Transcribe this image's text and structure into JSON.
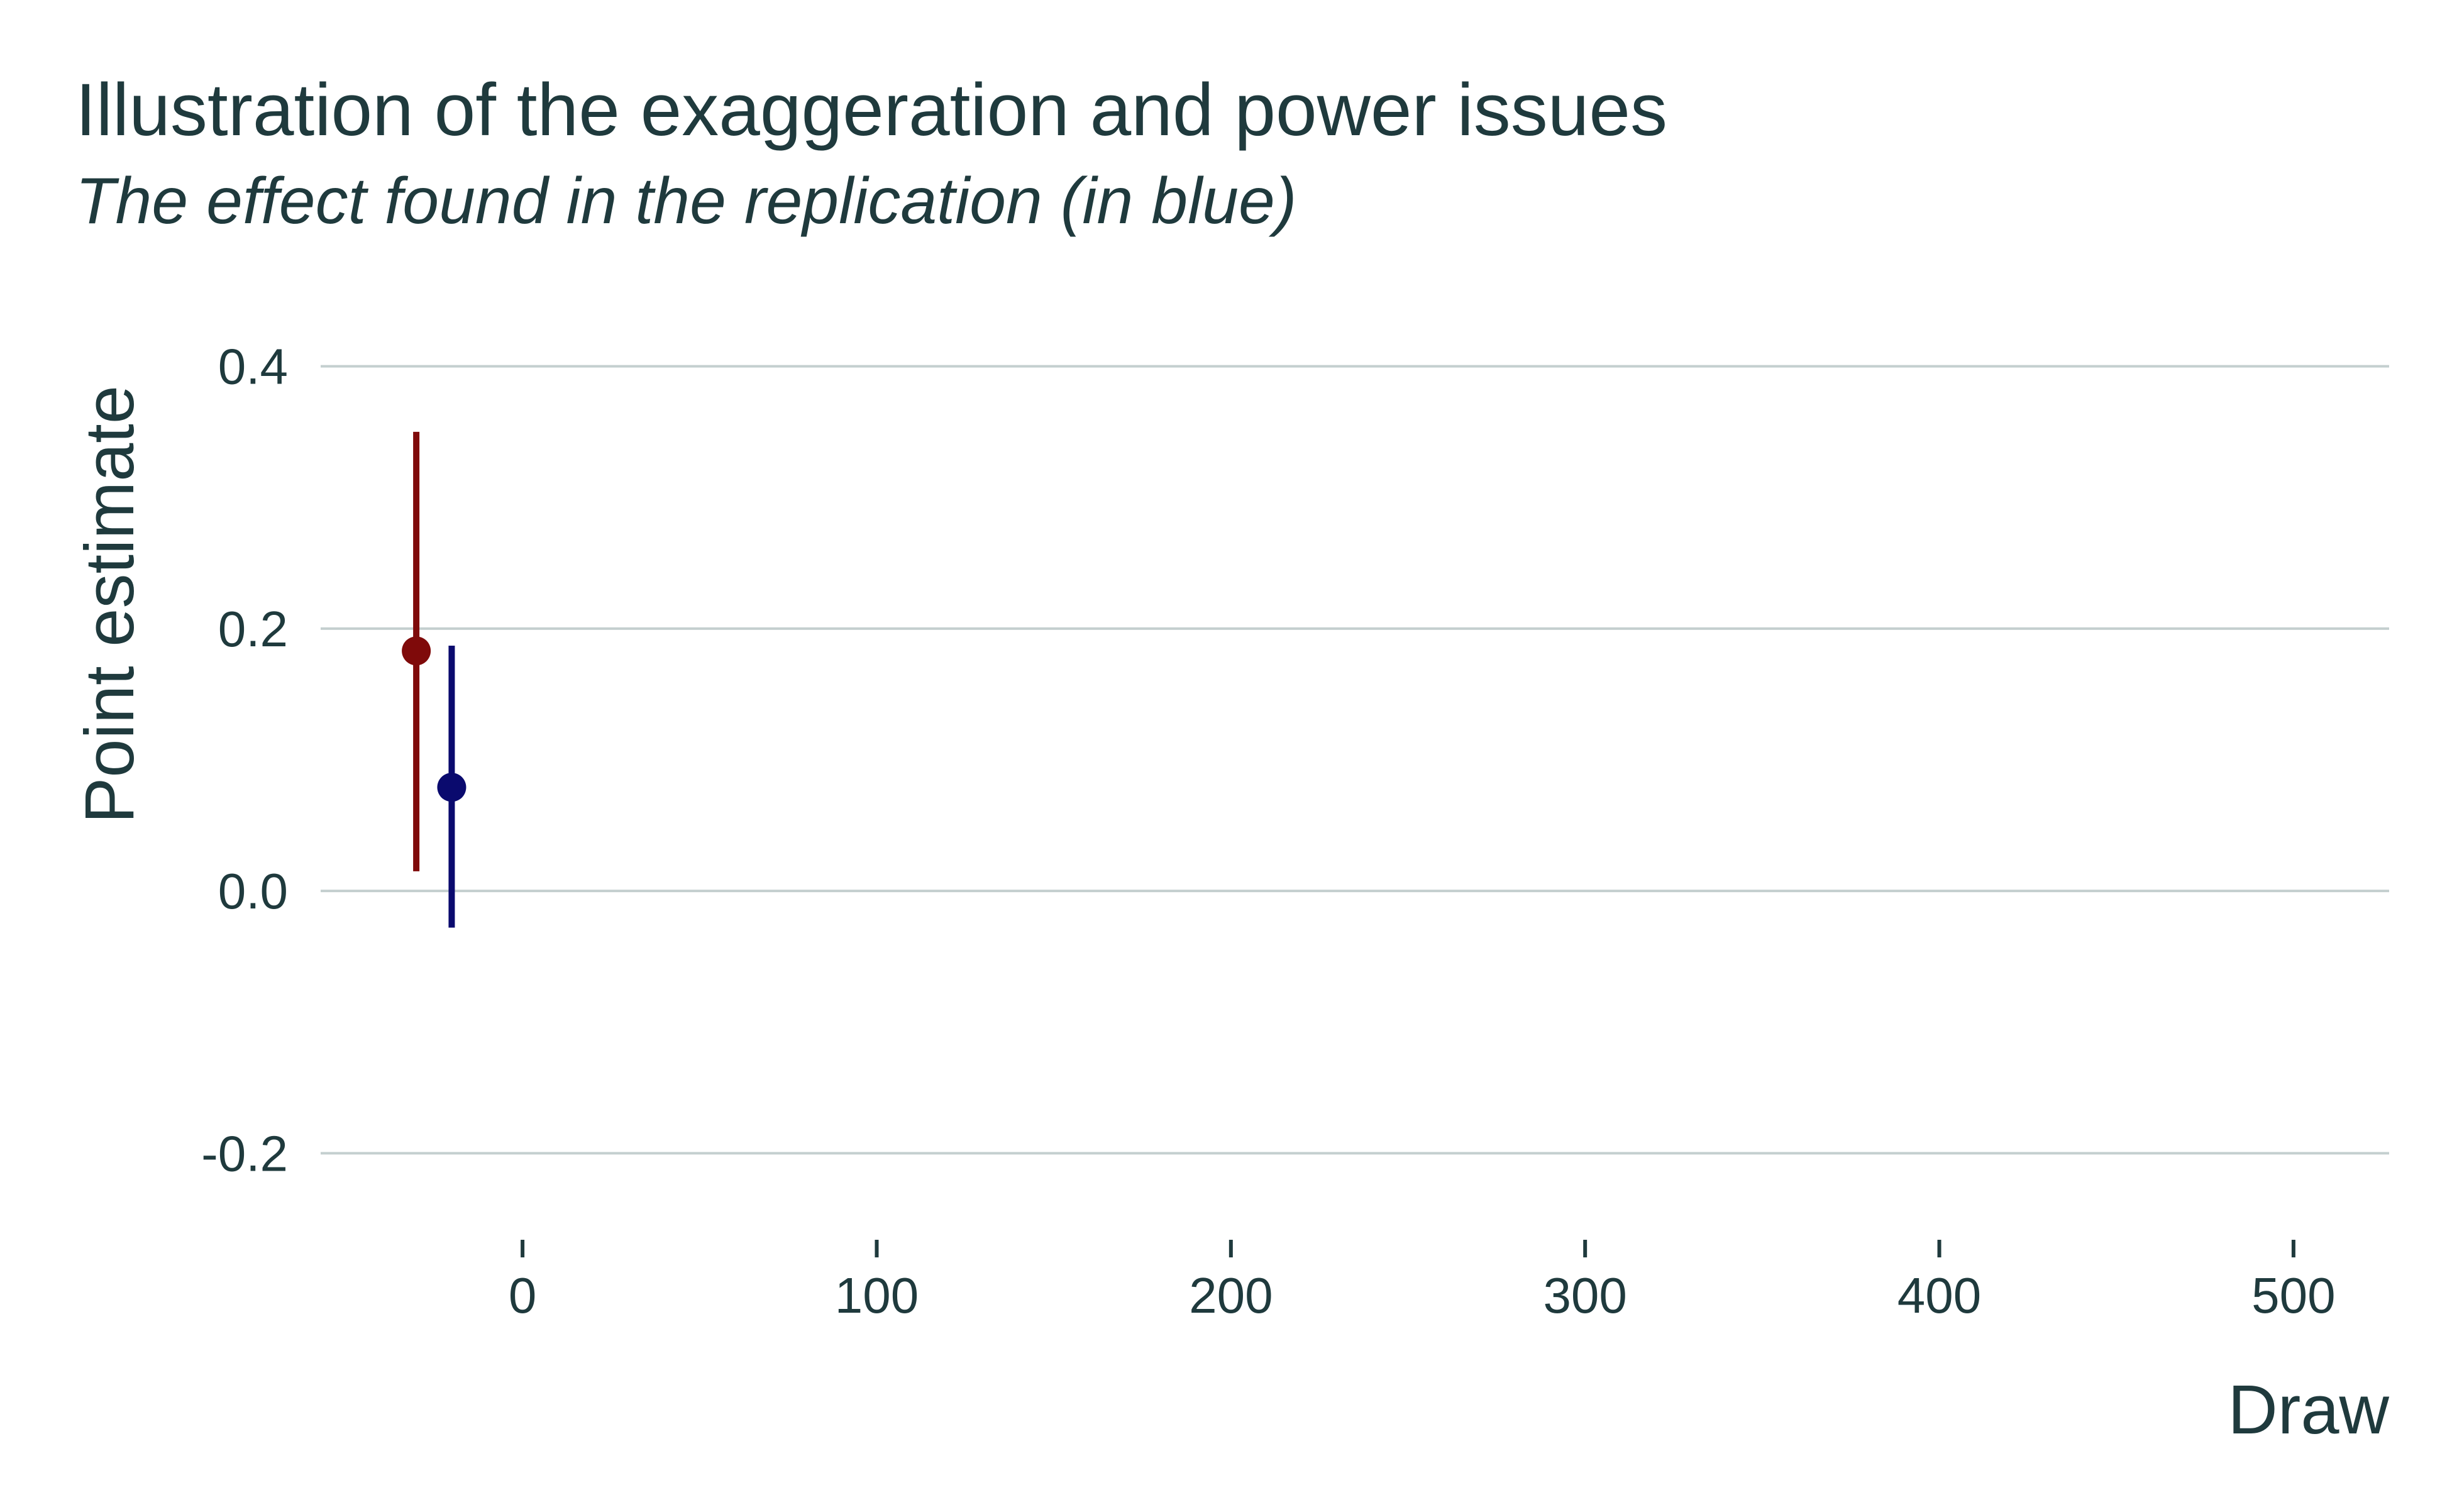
{
  "chart_data": {
    "type": "scatter",
    "title": "Illustration of the exaggeration and power issues",
    "subtitle": "The effect found in the replication (in blue)",
    "xlabel": "Draw",
    "ylabel": "Point estimate",
    "xlim": [
      -57,
      527
    ],
    "ylim": [
      -0.265,
      0.43
    ],
    "x_ticks": [
      0,
      100,
      200,
      300,
      400,
      500
    ],
    "x_tick_labels": [
      "0",
      "100",
      "200",
      "300",
      "400",
      "500"
    ],
    "y_ticks": [
      -0.2,
      0.0,
      0.2,
      0.4
    ],
    "y_tick_labels": [
      "-0.2",
      "0.0",
      "0.2",
      "0.4"
    ],
    "grid": "horizontal major",
    "legend": "none",
    "series": [
      {
        "color": "#7f0a0a",
        "points": [
          {
            "x": -30,
            "y": 0.183,
            "lower": 0.015,
            "upper": 0.35
          }
        ]
      },
      {
        "color": "#0a0a6e",
        "points": [
          {
            "x": -20,
            "y": 0.079,
            "lower": -0.028,
            "upper": 0.187
          }
        ]
      }
    ]
  }
}
